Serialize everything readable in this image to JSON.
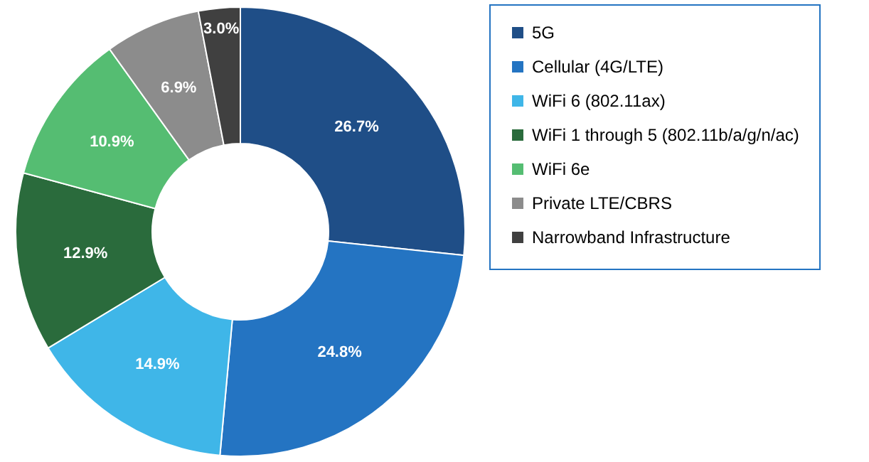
{
  "chart_data": {
    "type": "donut",
    "categories": [
      "5G",
      "Cellular (4G/LTE)",
      "WiFi 6 (802.11ax)",
      "WiFi 1 through 5 (802.11b/a/g/n/ac)",
      "WiFi 6e",
      "Private LTE/CBRS",
      "Narrowband Infrastructure"
    ],
    "values": [
      26.7,
      24.8,
      14.9,
      12.9,
      10.9,
      6.9,
      3.0
    ],
    "value_labels": [
      "26.7%",
      "24.8%",
      "14.9%",
      "12.9%",
      "10.9%",
      "6.9%",
      "3.0%"
    ],
    "colors": [
      "#1f4e87",
      "#2474c2",
      "#3fb6e8",
      "#2a6b3c",
      "#55bd72",
      "#8c8c8c",
      "#404040"
    ],
    "legend": "right"
  }
}
